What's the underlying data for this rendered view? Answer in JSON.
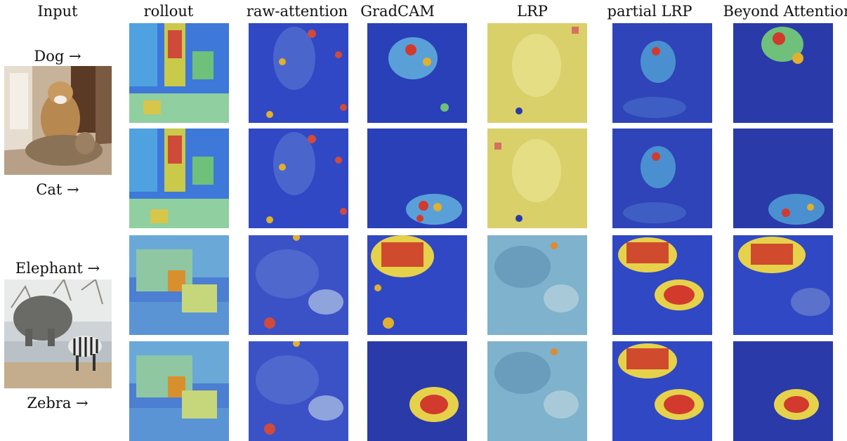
{
  "columns": {
    "input": "Input",
    "rollout": "rollout",
    "raw_attention": "raw-attention",
    "gradcam": "GradCAM",
    "lrp": "LRP",
    "partial_lrp": "partial LRP",
    "beyond_attention": "Beyond Attention"
  },
  "rows": {
    "dog": "Dog →",
    "cat": "Cat →",
    "elephant": "Elephant →",
    "zebra": "Zebra →"
  }
}
